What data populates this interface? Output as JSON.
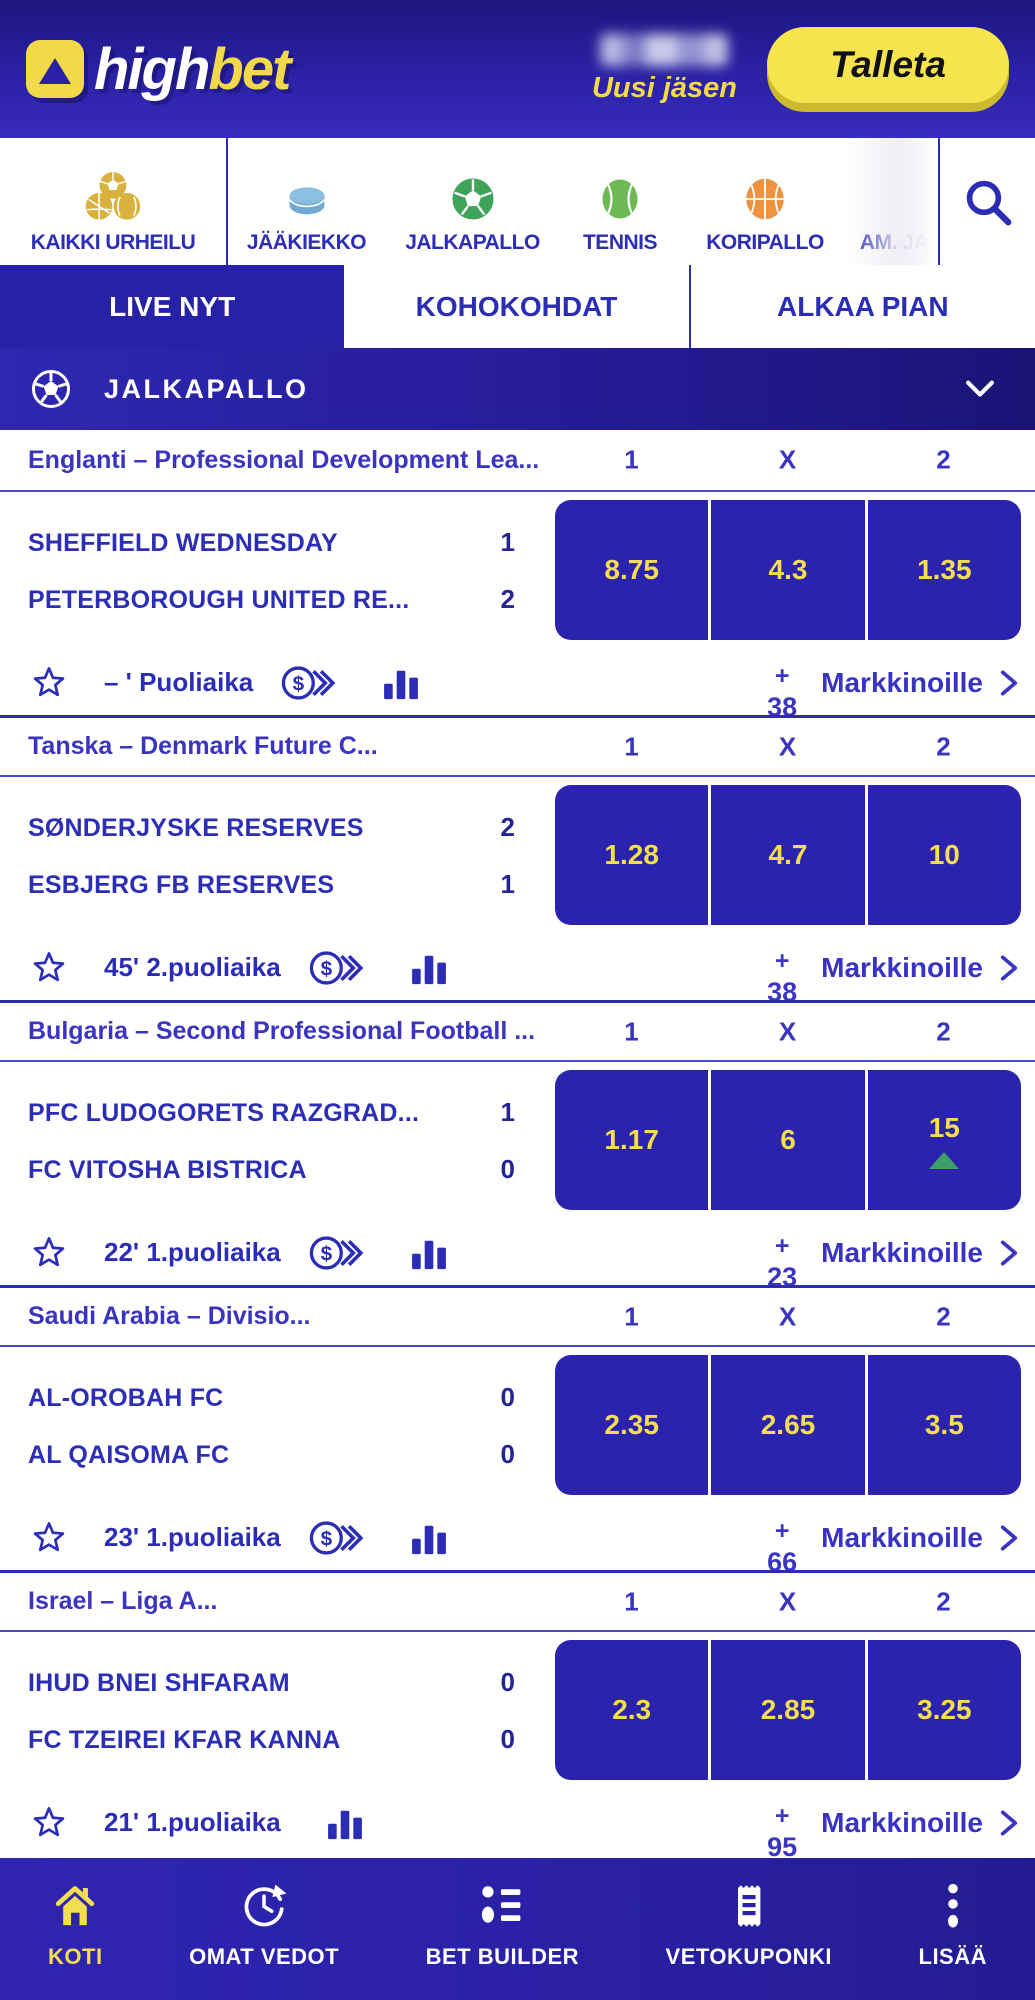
{
  "colors": {
    "header_blue": "#2a21a6",
    "accent_yellow": "#f2d94a",
    "odds_button_blue": "#2b22ad",
    "odds_text_yellow": "#f2de4e",
    "link_blue": "#3a33c2",
    "text_blue": "#2c2eb5",
    "trend_green": "#3f9f68"
  },
  "header": {
    "logo": {
      "prefix": "high",
      "suffix": "bet"
    },
    "user_name_masked": true,
    "user_label": "Uusi jäsen",
    "deposit_button": "Talleta"
  },
  "sports_nav": {
    "items": [
      {
        "id": "all-sports",
        "label": "KAIKKI URHEILU",
        "icon": "all-sports"
      },
      {
        "id": "ice-hockey",
        "label": "JÄÄKIEKKO",
        "icon": "puck"
      },
      {
        "id": "football",
        "label": "JALKAPALLO",
        "icon": "football"
      },
      {
        "id": "tennis",
        "label": "TENNIS",
        "icon": "tennis"
      },
      {
        "id": "basketball",
        "label": "KORIPALLO",
        "icon": "basketball"
      },
      {
        "id": "american-football",
        "label": "AM. JA",
        "icon": "none"
      }
    ]
  },
  "tabs": [
    {
      "label": "LIVE NYT",
      "active": true
    },
    {
      "label": "KOHOKOHDAT",
      "active": false
    },
    {
      "label": "ALKAA PIAN",
      "active": false
    }
  ],
  "section": {
    "title": "JALKAPALLO"
  },
  "odds_columns": [
    "1",
    "X",
    "2"
  ],
  "matches": [
    {
      "league": "Englanti – Professional Development Lea...",
      "teams": [
        {
          "name": "SHEFFIELD WEDNESDAY",
          "score": "1"
        },
        {
          "name": "PETERBOROUGH UNITED RE...",
          "score": "2"
        }
      ],
      "odds": [
        "8.75",
        "4.3",
        "1.35"
      ],
      "trend_up_index": null,
      "time": "– ' Puoliaika",
      "has_cashout": true,
      "extra_markets": "38",
      "markets_label": "Markkinoille"
    },
    {
      "league": "Tanska – Denmark Future C...",
      "teams": [
        {
          "name": "SØNDERJYSKE RESERVES",
          "score": "2"
        },
        {
          "name": "ESBJERG FB RESERVES",
          "score": "1"
        }
      ],
      "odds": [
        "1.28",
        "4.7",
        "10"
      ],
      "trend_up_index": null,
      "time": "45' 2.puoliaika",
      "has_cashout": true,
      "extra_markets": "38",
      "markets_label": "Markkinoille"
    },
    {
      "league": "Bulgaria – Second Professional Football ...",
      "teams": [
        {
          "name": "PFC LUDOGORETS RAZGRAD...",
          "score": "1"
        },
        {
          "name": "FC VITOSHA BISTRICA",
          "score": "0"
        }
      ],
      "odds": [
        "1.17",
        "6",
        "15"
      ],
      "trend_up_index": 2,
      "time": "22' 1.puoliaika",
      "has_cashout": true,
      "extra_markets": "23",
      "markets_label": "Markkinoille"
    },
    {
      "league": "Saudi Arabia – Divisio...",
      "teams": [
        {
          "name": "AL-OROBAH FC",
          "score": "0"
        },
        {
          "name": "AL QAISOMA FC",
          "score": "0"
        }
      ],
      "odds": [
        "2.35",
        "2.65",
        "3.5"
      ],
      "trend_up_index": null,
      "time": "23' 1.puoliaika",
      "has_cashout": true,
      "extra_markets": "66",
      "markets_label": "Markkinoille"
    },
    {
      "league": "Israel – Liga A...",
      "teams": [
        {
          "name": "IHUD BNEI SHFARAM",
          "score": "0"
        },
        {
          "name": "FC TZEIREI KFAR KANNA",
          "score": "0"
        }
      ],
      "odds": [
        "2.3",
        "2.85",
        "3.25"
      ],
      "trend_up_index": null,
      "time": "21' 1.puoliaika",
      "has_cashout": false,
      "extra_markets": "95",
      "markets_label": "Markkinoille"
    }
  ],
  "bottom_nav": {
    "items": [
      {
        "id": "home",
        "label": "KOTI",
        "icon": "home",
        "active": true
      },
      {
        "id": "my-bets",
        "label": "OMAT VEDOT",
        "icon": "history",
        "active": false
      },
      {
        "id": "bet-builder",
        "label": "BET BUILDER",
        "icon": "builder",
        "active": false
      },
      {
        "id": "betslip",
        "label": "VETOKUPONKI",
        "icon": "receipt",
        "active": false
      },
      {
        "id": "more",
        "label": "LISÄÄ",
        "icon": "more",
        "active": false
      }
    ]
  }
}
